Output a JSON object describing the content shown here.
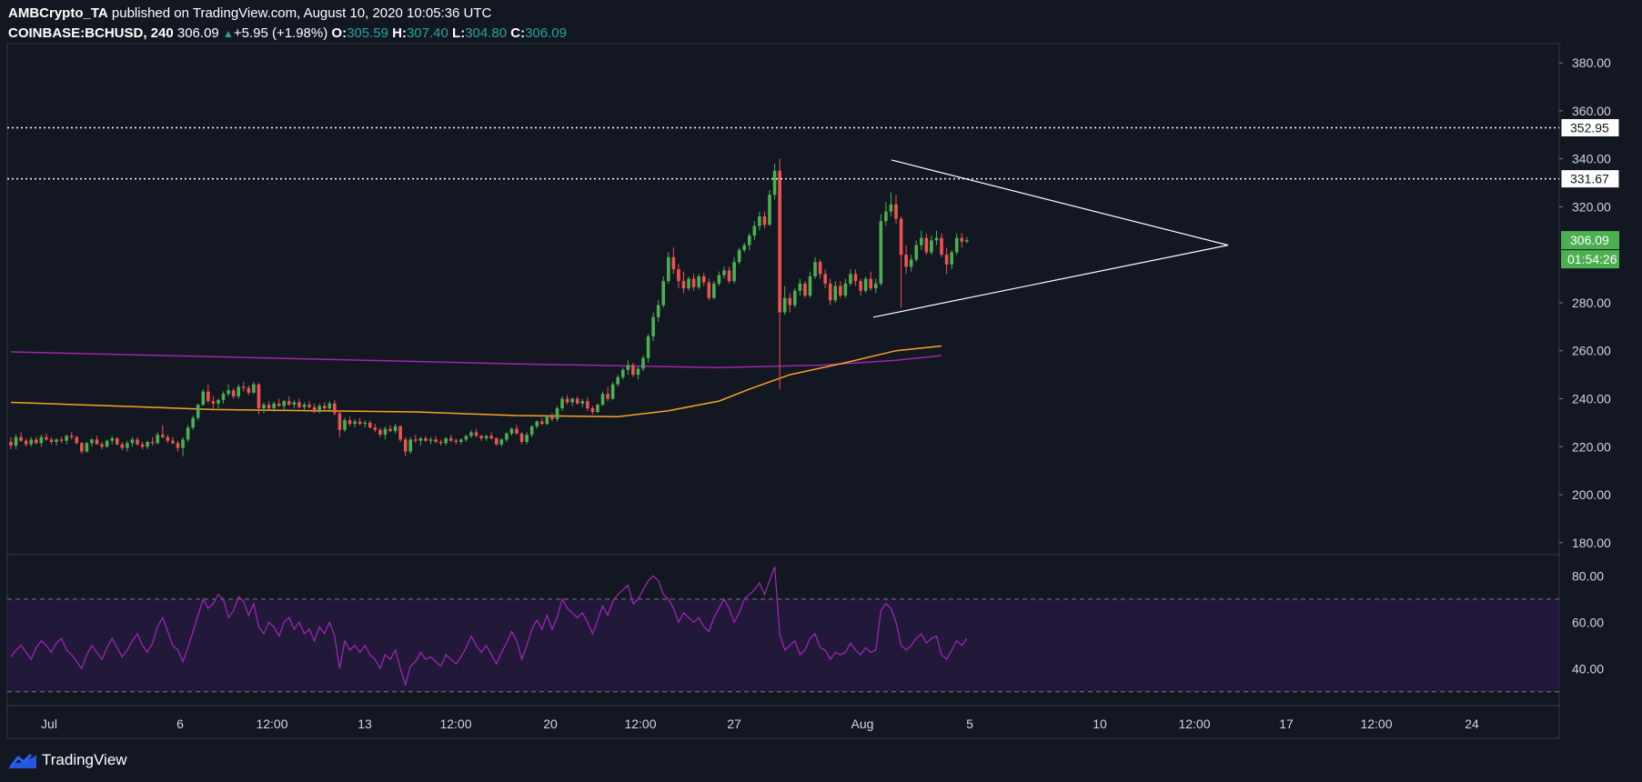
{
  "header": {
    "publisher": "AMBCrypto_TA",
    "published_text": " published on TradingView.com, August 10, 2020 10:05:36 UTC",
    "symbol": "COINBASE:BCHUSD, 240",
    "last": "306.09",
    "change": "+5.95 (+1.98%)",
    "o_label": "O:",
    "o_value": "305.59",
    "h_label": "H:",
    "h_value": "307.40",
    "l_label": "L:",
    "l_value": "304.80",
    "c_label": "C:",
    "c_value": "306.09"
  },
  "footer": {
    "brand": "TradingView"
  },
  "colors": {
    "background": "#131722",
    "up": "#26a69a",
    "candle_up": "#4caf50",
    "candle_down": "#ef5350",
    "ma_orange": "#f5a623",
    "ma_purple": "#9c27b0",
    "rsi_line": "#9c27b0",
    "rsi_band": "#21183a",
    "price_badge": "#4caf50"
  },
  "chart_data": {
    "type": "candlestick",
    "ylim": [
      175,
      388
    ],
    "price_ticks": [
      "180.00",
      "200.00",
      "220.00",
      "240.00",
      "260.00",
      "280.00",
      "320.00",
      "340.00",
      "360.00",
      "380.00"
    ],
    "x_tick_labels": [
      "Jul",
      "6",
      "12:00",
      "13",
      "12:00",
      "20",
      "12:00",
      "27",
      "Aug",
      "5",
      "10",
      "12:00",
      "17",
      "12:00",
      "24"
    ],
    "horizontal_levels": [
      {
        "value": 352.95,
        "label": "352.95"
      },
      {
        "value": 331.67,
        "label": "331.67"
      }
    ],
    "last_price": {
      "value": 306.09,
      "label": "306.09",
      "countdown": "01:54:26"
    },
    "triangle": {
      "upper": [
        [
          338.5,
          339.5
        ],
        [
          0,
          304
        ]
      ],
      "lower": [
        [
          274,
          304
        ]
      ]
    },
    "candles": [
      [
        222,
        224,
        219,
        220.5
      ],
      [
        220.5,
        225,
        219,
        224
      ],
      [
        224,
        226,
        222,
        222.5
      ],
      [
        222.5,
        223.5,
        220,
        221
      ],
      [
        221,
        224,
        220,
        223
      ],
      [
        223,
        224,
        221,
        221.5
      ],
      [
        221.5,
        225,
        220,
        224
      ],
      [
        224,
        225.5,
        222.5,
        223
      ],
      [
        223,
        224,
        221,
        222
      ],
      [
        222,
        223.5,
        220.5,
        223
      ],
      [
        223,
        224,
        221.5,
        222.5
      ],
      [
        222.5,
        225,
        221,
        224.5
      ],
      [
        224.5,
        226,
        223,
        224
      ],
      [
        224,
        224.5,
        221,
        221.5
      ],
      [
        221.5,
        222,
        217,
        218
      ],
      [
        218,
        222,
        217.5,
        221.5
      ],
      [
        221.5,
        223.5,
        220,
        223
      ],
      [
        223,
        224.5,
        221,
        221
      ],
      [
        221,
        222,
        219,
        220
      ],
      [
        220,
        223,
        219.5,
        222.5
      ],
      [
        222.5,
        224.5,
        221,
        223.5
      ],
      [
        223.5,
        224,
        220.5,
        221
      ],
      [
        221,
        222,
        218.5,
        219.5
      ],
      [
        219.5,
        222.5,
        218,
        221.5
      ],
      [
        221.5,
        224,
        220,
        223
      ],
      [
        223,
        224,
        220.5,
        221
      ],
      [
        221,
        222,
        219,
        220
      ],
      [
        220,
        222.5,
        219,
        222
      ],
      [
        222,
        224,
        220.5,
        221.5
      ],
      [
        221.5,
        226,
        221,
        225
      ],
      [
        225,
        229,
        223.5,
        224
      ],
      [
        224,
        225,
        221.5,
        222.5
      ],
      [
        222.5,
        224,
        221,
        221.5
      ],
      [
        221.5,
        222.5,
        218,
        219.5
      ],
      [
        219.5,
        224,
        216,
        223
      ],
      [
        223,
        229,
        222,
        228
      ],
      [
        228,
        233,
        227,
        232
      ],
      [
        232,
        238,
        231,
        237.5
      ],
      [
        237.5,
        244,
        237,
        243
      ],
      [
        243,
        246,
        238,
        239
      ],
      [
        239,
        241,
        235.5,
        238
      ],
      [
        238,
        240,
        236,
        239.5
      ],
      [
        239.5,
        243,
        238,
        242
      ],
      [
        242,
        246,
        241,
        243.5
      ],
      [
        243.5,
        244.5,
        240,
        241
      ],
      [
        241,
        246,
        240,
        245
      ],
      [
        245,
        247,
        243,
        244.5
      ],
      [
        244.5,
        245.5,
        241.5,
        242.5
      ],
      [
        242.5,
        247,
        242,
        246
      ],
      [
        246,
        246.5,
        233.5,
        236
      ],
      [
        236,
        238.5,
        234,
        237.5
      ],
      [
        237.5,
        239,
        235.5,
        236
      ],
      [
        236,
        239,
        234.5,
        238
      ],
      [
        238,
        240,
        236.5,
        237
      ],
      [
        237,
        239.5,
        235.5,
        239
      ],
      [
        239,
        241,
        237,
        237.5
      ],
      [
        237.5,
        239.5,
        236,
        238.5
      ],
      [
        238.5,
        240,
        236,
        236.5
      ],
      [
        236.5,
        238.5,
        235,
        237.5
      ],
      [
        237.5,
        239,
        236,
        236.5
      ],
      [
        236.5,
        238,
        234,
        234.5
      ],
      [
        234.5,
        238,
        234,
        237
      ],
      [
        237,
        238.5,
        235,
        236
      ],
      [
        236,
        239,
        235,
        238
      ],
      [
        238,
        239.5,
        233,
        234
      ],
      [
        234,
        235,
        224,
        227
      ],
      [
        227,
        232,
        226,
        231
      ],
      [
        231,
        232.5,
        228.5,
        229.5
      ],
      [
        229.5,
        231.5,
        228,
        230.5
      ],
      [
        230.5,
        232,
        229,
        229.5
      ],
      [
        229.5,
        231,
        228,
        230
      ],
      [
        230,
        231,
        227.5,
        228
      ],
      [
        228,
        229.5,
        226,
        227
      ],
      [
        227,
        228,
        224,
        225
      ],
      [
        225,
        228.5,
        223,
        227.5
      ],
      [
        227.5,
        229,
        226,
        226.5
      ],
      [
        226.5,
        229.5,
        225.5,
        228.5
      ],
      [
        228.5,
        229,
        222,
        223
      ],
      [
        223,
        224,
        216,
        218
      ],
      [
        218,
        224,
        217,
        223
      ],
      [
        223,
        225,
        221.5,
        222.5
      ],
      [
        222.5,
        224,
        220.5,
        223.5
      ],
      [
        223.5,
        224.5,
        222,
        222.5
      ],
      [
        222.5,
        224,
        221,
        223
      ],
      [
        223,
        224.5,
        221.5,
        222
      ],
      [
        222,
        223,
        220.5,
        221.5
      ],
      [
        221.5,
        224,
        220.5,
        223.5
      ],
      [
        223.5,
        225,
        222,
        222.5
      ],
      [
        222.5,
        223.5,
        221,
        222
      ],
      [
        222,
        223.5,
        221,
        223
      ],
      [
        223,
        225,
        222,
        224.5
      ],
      [
        224.5,
        227,
        223.5,
        226
      ],
      [
        226,
        227.5,
        224,
        224.5
      ],
      [
        224.5,
        225,
        222.5,
        223.5
      ],
      [
        223.5,
        225,
        222.5,
        224.5
      ],
      [
        224.5,
        226,
        223,
        223.5
      ],
      [
        223.5,
        224,
        220.5,
        221
      ],
      [
        221,
        223.5,
        220,
        223
      ],
      [
        223,
        226,
        222,
        225.5
      ],
      [
        225.5,
        228,
        224.5,
        227.5
      ],
      [
        227.5,
        229,
        225,
        225.5
      ],
      [
        225.5,
        226,
        221,
        222
      ],
      [
        222,
        226,
        221,
        225
      ],
      [
        225,
        229,
        224,
        228.5
      ],
      [
        228.5,
        231,
        227.5,
        230.5
      ],
      [
        230.5,
        232,
        229,
        229.5
      ],
      [
        229.5,
        233,
        229,
        232.5
      ],
      [
        232.5,
        234,
        230.5,
        231.5
      ],
      [
        231.5,
        237,
        230.5,
        236
      ],
      [
        236,
        241,
        235,
        240
      ],
      [
        240,
        241.5,
        237.5,
        238.5
      ],
      [
        238.5,
        240.5,
        237,
        240
      ],
      [
        240,
        241,
        237.5,
        238
      ],
      [
        238,
        240,
        236.5,
        239
      ],
      [
        239,
        240.5,
        235,
        236
      ],
      [
        236,
        237,
        233.5,
        234.5
      ],
      [
        234.5,
        238,
        234,
        237.5
      ],
      [
        237.5,
        243,
        237,
        242
      ],
      [
        242,
        245,
        239,
        240
      ],
      [
        240,
        247,
        239.5,
        246
      ],
      [
        246,
        250,
        245,
        249
      ],
      [
        249,
        253,
        248,
        252
      ],
      [
        252,
        256,
        250,
        254
      ],
      [
        254,
        255,
        249,
        250
      ],
      [
        250,
        253.5,
        248,
        252.5
      ],
      [
        252.5,
        258,
        251.5,
        257
      ],
      [
        257,
        267,
        255,
        266
      ],
      [
        266,
        276,
        264,
        274
      ],
      [
        274,
        281,
        272,
        279
      ],
      [
        279,
        291,
        278,
        289
      ],
      [
        289,
        301,
        288,
        299
      ],
      [
        299,
        303,
        292,
        294
      ],
      [
        294,
        296,
        286,
        289
      ],
      [
        289,
        293,
        284,
        286
      ],
      [
        286,
        291,
        285,
        290
      ],
      [
        290,
        292,
        285,
        286.5
      ],
      [
        286.5,
        292,
        285.5,
        291
      ],
      [
        291,
        292.5,
        287,
        288.5
      ],
      [
        288.5,
        290,
        281,
        282
      ],
      [
        282,
        289,
        281.5,
        288
      ],
      [
        288,
        293,
        287,
        291.5
      ],
      [
        291.5,
        295,
        290,
        293.5
      ],
      [
        293.5,
        295,
        288,
        289
      ],
      [
        289,
        299,
        288,
        297
      ],
      [
        297,
        303,
        296,
        302
      ],
      [
        302,
        305,
        301,
        304
      ],
      [
        304,
        309,
        302,
        308
      ],
      [
        308,
        314,
        306,
        312
      ],
      [
        312,
        318,
        310,
        316
      ],
      [
        316,
        318,
        311,
        312.5
      ],
      [
        312.5,
        327,
        312,
        325
      ],
      [
        325,
        338,
        323,
        335
      ],
      [
        335,
        340,
        244,
        276
      ],
      [
        276,
        287,
        275,
        282
      ],
      [
        282,
        284,
        276,
        279
      ],
      [
        279,
        286,
        278,
        285
      ],
      [
        285,
        290,
        283,
        288
      ],
      [
        288,
        289,
        282,
        283
      ],
      [
        283,
        293,
        282,
        291
      ],
      [
        291,
        299,
        290,
        297
      ],
      [
        297,
        298,
        290,
        292
      ],
      [
        292,
        294,
        286,
        288
      ],
      [
        288,
        290,
        279,
        281
      ],
      [
        281,
        289,
        280,
        287
      ],
      [
        287,
        289,
        282,
        283
      ],
      [
        283,
        290,
        282,
        288
      ],
      [
        288,
        294,
        287,
        292
      ],
      [
        292,
        294,
        287,
        289
      ],
      [
        289,
        290,
        283,
        285
      ],
      [
        285,
        291,
        284,
        290
      ],
      [
        290,
        293,
        285,
        286
      ],
      [
        286,
        290,
        284,
        288
      ],
      [
        288,
        317,
        287,
        314
      ],
      [
        314,
        322,
        312,
        318
      ],
      [
        318,
        326,
        316,
        321
      ],
      [
        321,
        325,
        313,
        315
      ],
      [
        315,
        316,
        278,
        300
      ],
      [
        300,
        304,
        292,
        295
      ],
      [
        295,
        300,
        293,
        298
      ],
      [
        298,
        306,
        297,
        304
      ],
      [
        304,
        310,
        302,
        307
      ],
      [
        307,
        309,
        300,
        301
      ],
      [
        301,
        308,
        300,
        306
      ],
      [
        306,
        310,
        304,
        307
      ],
      [
        307,
        309,
        299,
        300
      ],
      [
        300,
        303,
        292,
        296
      ],
      [
        296,
        302,
        294,
        301
      ],
      [
        301,
        309,
        300,
        307
      ],
      [
        307,
        309,
        303,
        305.5
      ],
      [
        305.5,
        307.4,
        304.8,
        306.09
      ]
    ],
    "rsi": {
      "ylim": [
        24,
        88
      ],
      "ticks": [
        "40.00",
        "60.00",
        "80.00"
      ],
      "band": [
        30,
        70
      ],
      "values": [
        45,
        48,
        50,
        47,
        44,
        49,
        52,
        50,
        47,
        51,
        53,
        48,
        46,
        43,
        40,
        46,
        50,
        47,
        44,
        49,
        53,
        49,
        45,
        48,
        52,
        55,
        50,
        47,
        51,
        58,
        62,
        56,
        50,
        48,
        43,
        49,
        56,
        63,
        70,
        66,
        68,
        72,
        70,
        62,
        65,
        71,
        69,
        63,
        68,
        58,
        55,
        60,
        58,
        54,
        60,
        62,
        57,
        60,
        55,
        57,
        52,
        58,
        55,
        60,
        54,
        40,
        52,
        48,
        50,
        47,
        50,
        46,
        44,
        40,
        46,
        44,
        48,
        40,
        33,
        41,
        43,
        47,
        44,
        45,
        43,
        41,
        46,
        44,
        42,
        45,
        49,
        54,
        50,
        47,
        50,
        46,
        42,
        47,
        51,
        56,
        52,
        44,
        50,
        57,
        61,
        57,
        63,
        57,
        62,
        70,
        66,
        64,
        62,
        64,
        60,
        55,
        61,
        67,
        63,
        69,
        72,
        74,
        76,
        68,
        70,
        74,
        78,
        80,
        78,
        72,
        70,
        66,
        60,
        64,
        62,
        60,
        62,
        58,
        56,
        62,
        66,
        70,
        66,
        60,
        64,
        70,
        72,
        74,
        77,
        72,
        78,
        84,
        55,
        48,
        50,
        52,
        46,
        48,
        53,
        55,
        49,
        48,
        44,
        47,
        46,
        47,
        51,
        48,
        46,
        49,
        47,
        48,
        65,
        68,
        66,
        60,
        50,
        48,
        50,
        53,
        55,
        51,
        53,
        54,
        46,
        44,
        48,
        52,
        50,
        53
      ]
    },
    "ma_orange": [
      [
        0,
        238.5
      ],
      [
        20,
        237
      ],
      [
        40,
        235.5
      ],
      [
        60,
        235
      ],
      [
        80,
        234.5
      ],
      [
        100,
        233
      ],
      [
        120,
        232.5
      ],
      [
        130,
        235
      ],
      [
        140,
        239
      ],
      [
        146,
        244
      ],
      [
        154,
        250
      ],
      [
        165,
        255
      ],
      [
        175,
        260
      ],
      [
        184,
        262
      ]
    ],
    "ma_purple": [
      [
        0,
        259.5
      ],
      [
        50,
        257
      ],
      [
        100,
        254.5
      ],
      [
        140,
        253
      ],
      [
        160,
        254
      ],
      [
        175,
        256
      ],
      [
        184,
        258
      ]
    ]
  }
}
